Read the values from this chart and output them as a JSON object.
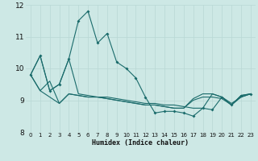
{
  "title": "",
  "xlabel": "Humidex (Indice chaleur)",
  "background_color": "#cde8e5",
  "grid_color": "#b8d8d5",
  "line_color": "#1a6b6b",
  "xlim": [
    -0.5,
    23.5
  ],
  "ylim": [
    8,
    12
  ],
  "yticks": [
    8,
    9,
    10,
    11,
    12
  ],
  "xticks": [
    0,
    1,
    2,
    3,
    4,
    5,
    6,
    7,
    8,
    9,
    10,
    11,
    12,
    13,
    14,
    15,
    16,
    17,
    18,
    19,
    20,
    21,
    22,
    23
  ],
  "series": [
    [
      9.8,
      10.4,
      9.3,
      9.5,
      10.3,
      11.5,
      11.8,
      10.8,
      11.1,
      10.2,
      10.0,
      9.7,
      9.1,
      8.6,
      8.65,
      8.65,
      8.6,
      8.5,
      8.75,
      8.7,
      9.1,
      8.85,
      9.15,
      9.2
    ],
    [
      9.8,
      10.4,
      9.3,
      9.5,
      10.3,
      9.2,
      9.15,
      9.1,
      9.1,
      9.05,
      9.0,
      8.95,
      8.9,
      8.9,
      8.85,
      8.85,
      8.8,
      8.75,
      8.75,
      9.2,
      9.1,
      8.85,
      9.15,
      9.2
    ],
    [
      9.8,
      9.3,
      9.6,
      8.9,
      9.2,
      9.15,
      9.1,
      9.1,
      9.05,
      9.0,
      8.95,
      8.9,
      8.85,
      8.85,
      8.8,
      8.75,
      8.75,
      9.05,
      9.2,
      9.2,
      9.1,
      8.9,
      9.1,
      9.2
    ],
    [
      9.8,
      9.3,
      9.1,
      8.9,
      9.2,
      9.15,
      9.1,
      9.1,
      9.05,
      9.0,
      8.95,
      8.9,
      8.85,
      8.85,
      8.8,
      8.75,
      8.75,
      9.0,
      9.1,
      9.1,
      9.05,
      8.85,
      9.1,
      9.2
    ]
  ]
}
